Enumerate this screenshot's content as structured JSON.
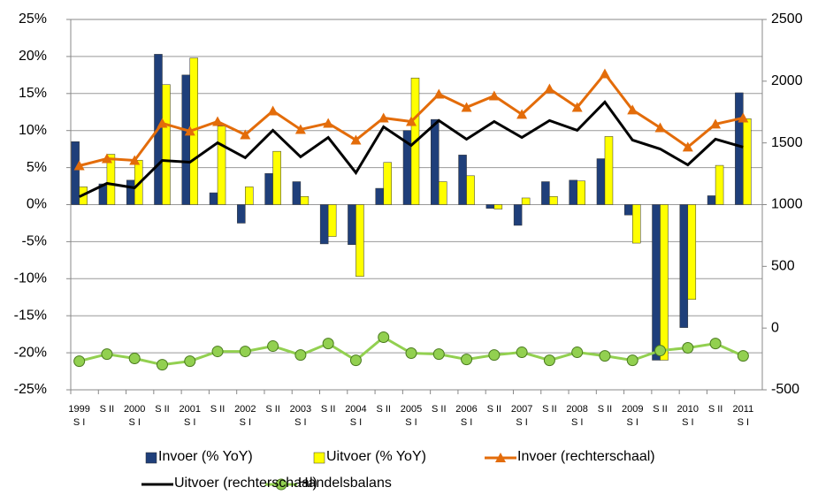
{
  "chart_data": {
    "type": "bar",
    "categories": [
      "1999\nS I",
      "S II",
      "2000\nS I",
      "S II",
      "2001\nS I",
      "S II",
      "2002\nS I",
      "S II",
      "2003\nS I",
      "S II",
      "2004\nS I",
      "S II",
      "2005\nS I",
      "S II",
      "2006\nS I",
      "S II",
      "2007\nS I",
      "S II",
      "2008\nS I",
      "S II",
      "2009\nS I",
      "S II",
      "2010\nS I",
      "S II",
      "2011\nS I"
    ],
    "series": [
      {
        "name": "Invoer (% YoY)",
        "type": "bar",
        "color": "#1f3f7a",
        "values": [
          8.5,
          2.8,
          3.3,
          20.3,
          17.5,
          1.6,
          -2.5,
          4.2,
          3.1,
          -5.3,
          -5.4,
          2.2,
          10,
          11.5,
          6.7,
          -0.5,
          -2.8,
          3.1,
          3.3,
          6.2,
          -1.4,
          -21,
          -16.6,
          1.2,
          15.1
        ]
      },
      {
        "name": "Uitvoer (% YoY)",
        "type": "bar",
        "color": "#ffff00",
        "values": [
          2.4,
          6.8,
          6,
          16.2,
          19.8,
          10.6,
          2.4,
          7.2,
          1.1,
          -4.3,
          -9.7,
          5.7,
          17.1,
          3.1,
          3.9,
          -0.6,
          0.9,
          1.1,
          3.2,
          9.2,
          -5.2,
          -21,
          -12.8,
          5.3,
          11.6
        ]
      },
      {
        "name": "Invoer (rechterschaal)",
        "type": "line",
        "axis": "y2",
        "marker": "triangle",
        "color": "#e36c0a",
        "values": [
          1315,
          1372,
          1358,
          1659,
          1595,
          1673,
          1566,
          1759,
          1609,
          1659,
          1523,
          1702,
          1673,
          1895,
          1788,
          1881,
          1731,
          1938,
          1788,
          2060,
          1767,
          1623,
          1466,
          1652,
          1702
        ]
      },
      {
        "name": "Uitvoer (rechterschaal)",
        "type": "line",
        "axis": "y2",
        "marker": "none",
        "color": "#000000",
        "values": [
          1064,
          1172,
          1136,
          1358,
          1344,
          1501,
          1380,
          1602,
          1387,
          1544,
          1258,
          1630,
          1480,
          1681,
          1530,
          1673,
          1544,
          1681,
          1602,
          1831,
          1523,
          1451,
          1322,
          1530,
          1466
        ]
      },
      {
        "name": "Handelsbalans",
        "type": "line",
        "axis": "y2",
        "marker": "circle",
        "color": "#92d050",
        "values": [
          -268,
          -211,
          -246,
          -297,
          -268,
          -189,
          -189,
          -146,
          -218,
          -125,
          -261,
          -74,
          -203,
          -211,
          -254,
          -218,
          -196,
          -261,
          -196,
          -225,
          -261,
          -182,
          -160,
          -125,
          -225
        ]
      }
    ],
    "ylim": [
      -25,
      25
    ],
    "yticks": [
      {
        "value": -25,
        "label": "-25%"
      },
      {
        "value": -20,
        "label": "-20%"
      },
      {
        "value": -15,
        "label": "-15%"
      },
      {
        "value": -10,
        "label": "-10%"
      },
      {
        "value": -5,
        "label": "-5%"
      },
      {
        "value": 0,
        "label": "0%"
      },
      {
        "value": 5,
        "label": "5%"
      },
      {
        "value": 10,
        "label": "10%"
      },
      {
        "value": 15,
        "label": "15%"
      },
      {
        "value": 20,
        "label": "20%"
      },
      {
        "value": 25,
        "label": "25%"
      }
    ],
    "y2lim": [
      -500,
      2500
    ],
    "y2ticks": [
      -500,
      0,
      500,
      1000,
      1500,
      2000,
      2500
    ],
    "grid": true
  }
}
